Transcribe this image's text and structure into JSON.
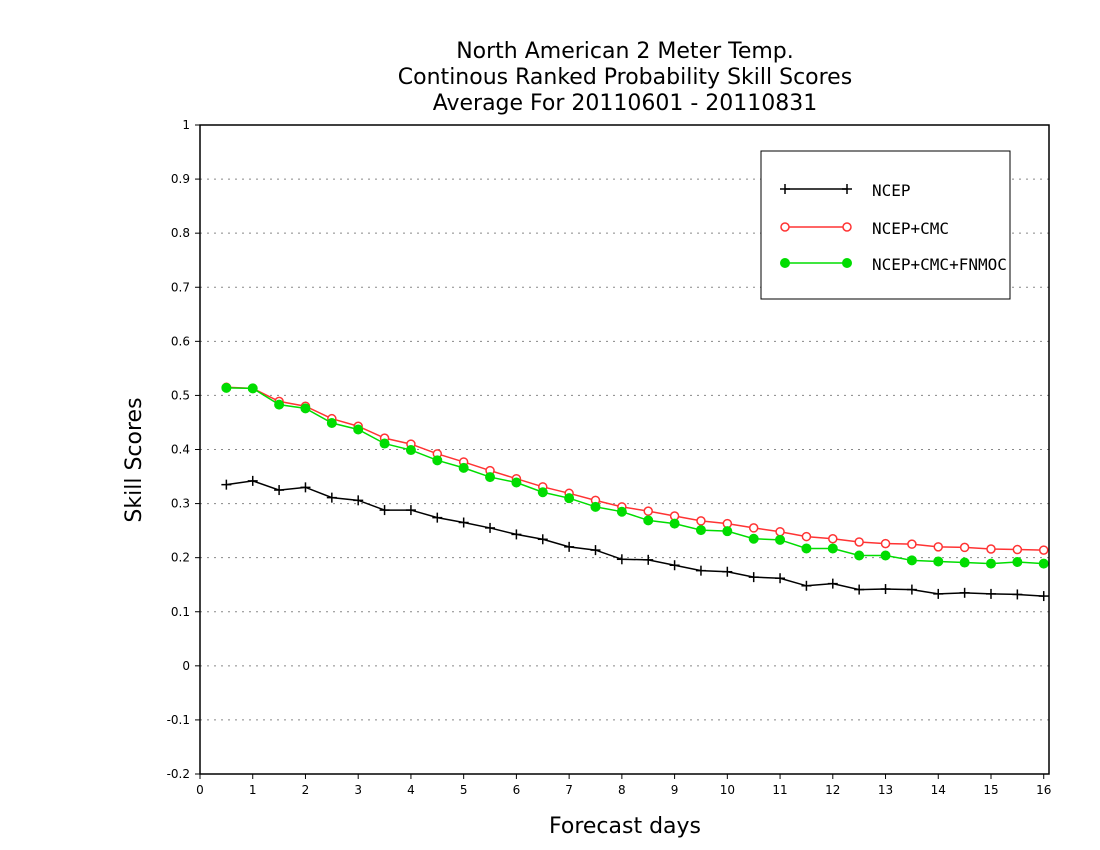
{
  "chart_data": {
    "type": "line",
    "title": [
      "North American 2 Meter Temp.",
      "Continous Ranked Probability Skill Scores",
      "Average For 20110601 - 20110831"
    ],
    "xlabel": "Forecast days",
    "ylabel": "Skill Scores",
    "xlim": [
      0,
      16.1
    ],
    "ylim": [
      -0.2,
      1
    ],
    "xticks": [
      "0",
      "1",
      "2",
      "3",
      "4",
      "5",
      "6",
      "7",
      "8",
      "9",
      "10",
      "11",
      "12",
      "13",
      "14",
      "15",
      "16"
    ],
    "yticks": [
      "-0.2",
      "-0.1",
      "0",
      "0.1",
      "0.2",
      "0.3",
      "0.4",
      "0.5",
      "0.6",
      "0.7",
      "0.8",
      "0.9",
      "1"
    ],
    "grid": "horizontal dotted",
    "legend_position": "top-right",
    "x": [
      0.5,
      1.0,
      1.5,
      2.0,
      2.5,
      3.0,
      3.5,
      4.0,
      4.5,
      5.0,
      5.5,
      6.0,
      6.5,
      7.0,
      7.5,
      8.0,
      8.5,
      9.0,
      9.5,
      10.0,
      10.5,
      11.0,
      11.5,
      12.0,
      12.5,
      13.0,
      13.5,
      14.0,
      14.5,
      15.0,
      15.5,
      16.0
    ],
    "series": [
      {
        "name": "NCEP",
        "color": "#000000",
        "marker": "plus",
        "values": [
          0.335,
          0.342,
          0.325,
          0.33,
          0.311,
          0.306,
          0.288,
          0.288,
          0.274,
          0.265,
          0.255,
          0.243,
          0.234,
          0.22,
          0.214,
          0.197,
          0.196,
          0.186,
          0.176,
          0.174,
          0.164,
          0.162,
          0.148,
          0.152,
          0.141,
          0.142,
          0.141,
          0.133,
          0.135,
          0.133,
          0.132,
          0.129
        ]
      },
      {
        "name": "NCEP+CMC",
        "color": "#ff3333",
        "marker": "open-circle",
        "values": [
          0.515,
          0.513,
          0.489,
          0.48,
          0.457,
          0.443,
          0.421,
          0.41,
          0.392,
          0.377,
          0.361,
          0.346,
          0.331,
          0.319,
          0.306,
          0.294,
          0.286,
          0.277,
          0.268,
          0.263,
          0.255,
          0.248,
          0.239,
          0.235,
          0.229,
          0.226,
          0.225,
          0.22,
          0.219,
          0.216,
          0.215,
          0.214
        ]
      },
      {
        "name": "NCEP+CMC+FNMOC",
        "color": "#00dd00",
        "marker": "filled-circle",
        "values": [
          0.514,
          0.513,
          0.483,
          0.476,
          0.449,
          0.437,
          0.411,
          0.399,
          0.38,
          0.366,
          0.349,
          0.339,
          0.321,
          0.31,
          0.294,
          0.285,
          0.269,
          0.263,
          0.251,
          0.249,
          0.235,
          0.233,
          0.217,
          0.217,
          0.204,
          0.204,
          0.195,
          0.193,
          0.191,
          0.189,
          0.192,
          0.189
        ]
      }
    ]
  }
}
